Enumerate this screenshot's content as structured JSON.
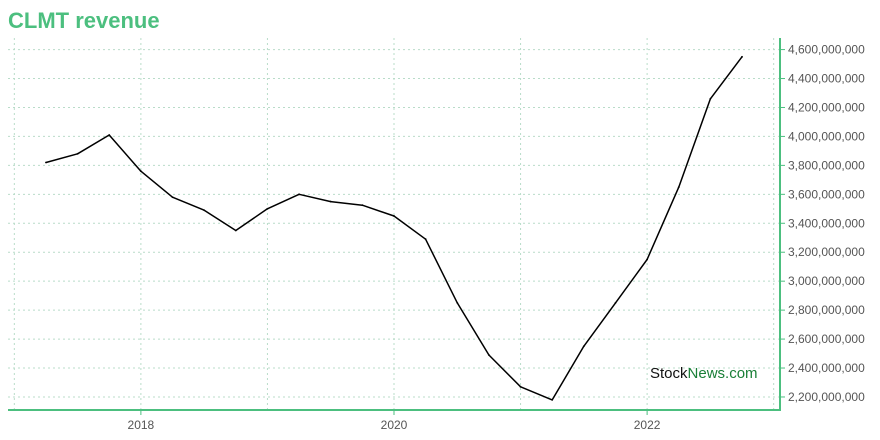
{
  "colors": {
    "title": "#4cbf7f",
    "axis": "#4cbf7f",
    "grid": "#b9dcc9",
    "line": "#000000"
  },
  "watermark": {
    "part1": "Stock",
    "part2": "News.com"
  },
  "chart_data": {
    "type": "line",
    "title": "CLMT revenue",
    "xlabel": "",
    "ylabel": "",
    "grid": true,
    "legend": "none",
    "y_axis_side": "right",
    "xlim": [
      2016.95,
      2023.05
    ],
    "ylim": [
      2110000000,
      4680000000
    ],
    "x_ticks": [
      2018,
      2020,
      2022
    ],
    "x_tick_labels": [
      "2018",
      "2020",
      "2022"
    ],
    "y_ticks": [
      2200000000,
      2400000000,
      2600000000,
      2800000000,
      3000000000,
      3200000000,
      3400000000,
      3600000000,
      3800000000,
      4000000000,
      4200000000,
      4400000000,
      4600000000
    ],
    "y_tick_labels": [
      "2,200,000,000",
      "2,400,000,000",
      "2,600,000,000",
      "2,800,000,000",
      "3,000,000,000",
      "3,200,000,000",
      "3,400,000,000",
      "3,600,000,000",
      "3,800,000,000",
      "4,000,000,000",
      "4,200,000,000",
      "4,400,000,000",
      "4,600,000,000"
    ],
    "series": [
      {
        "x": [
          2017.25,
          2017.5,
          2017.75,
          2018.0,
          2018.25,
          2018.5,
          2018.75,
          2019.0,
          2019.25,
          2019.5,
          2019.75,
          2020.0,
          2020.25,
          2020.5,
          2020.75,
          2021.0,
          2021.25,
          2021.5,
          2021.75,
          2022.0,
          2022.25,
          2022.5,
          2022.75
        ],
        "values": [
          3820000000,
          3880000000,
          4010000000,
          3760000000,
          3580000000,
          3490000000,
          3350000000,
          3500000000,
          3600000000,
          3550000000,
          3525000000,
          3450000000,
          3290000000,
          2850000000,
          2490000000,
          2270000000,
          2180000000,
          2550000000,
          2850000000,
          3150000000,
          3650000000,
          4260000000,
          4550000000
        ]
      }
    ]
  }
}
